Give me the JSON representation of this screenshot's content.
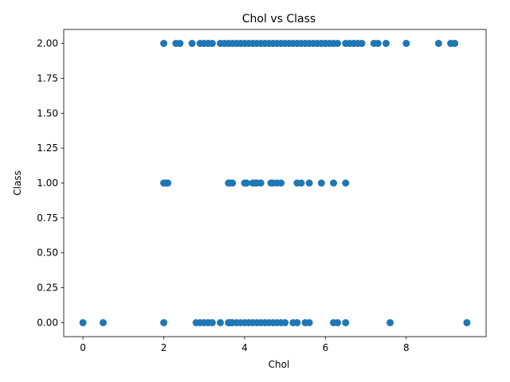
{
  "chart_data": {
    "type": "scatter",
    "title": "Chol vs Class",
    "xlabel": "Chol",
    "ylabel": "Class",
    "xlim": [
      -0.475,
      9.975
    ],
    "ylim": [
      -0.1,
      2.1
    ],
    "x_ticks": [
      0,
      2,
      4,
      6,
      8
    ],
    "x_tick_labels": [
      "0",
      "2",
      "4",
      "6",
      "8"
    ],
    "y_ticks": [
      0.0,
      0.25,
      0.5,
      0.75,
      1.0,
      1.25,
      1.5,
      1.75,
      2.0
    ],
    "y_tick_labels": [
      "0.00",
      "0.25",
      "0.50",
      "0.75",
      "1.00",
      "1.25",
      "1.50",
      "1.75",
      "2.00"
    ],
    "grid": false,
    "marker_color": "#1f77b4",
    "series": [
      {
        "x": [
          2.0,
          2.3,
          2.4,
          2.7,
          2.9,
          3.0,
          3.1,
          3.2,
          3.4,
          3.5,
          3.6,
          3.7,
          3.8,
          3.9,
          4.0,
          4.1,
          4.2,
          4.3,
          4.4,
          4.5,
          4.6,
          4.7,
          4.8,
          4.9,
          5.0,
          5.1,
          5.2,
          5.3,
          5.4,
          5.5,
          5.6,
          5.7,
          5.8,
          5.9,
          6.0,
          6.1,
          6.2,
          6.3,
          6.5,
          6.6,
          6.7,
          6.8,
          6.9,
          7.2,
          7.3,
          7.5,
          8.0,
          8.8,
          9.1,
          9.2,
          2.0,
          2.05,
          2.1,
          3.6,
          3.65,
          3.7,
          4.0,
          4.05,
          4.2,
          4.25,
          4.3,
          4.4,
          4.65,
          4.7,
          4.8,
          4.9,
          5.3,
          5.4,
          5.6,
          5.9,
          6.2,
          6.5,
          0.0,
          0.5,
          2.0,
          2.8,
          2.9,
          3.0,
          3.1,
          3.2,
          3.4,
          3.6,
          3.65,
          3.7,
          3.8,
          3.9,
          4.0,
          4.1,
          4.2,
          4.3,
          4.4,
          4.5,
          4.6,
          4.7,
          4.8,
          4.9,
          5.0,
          5.2,
          5.3,
          5.5,
          5.6,
          6.2,
          6.3,
          6.5,
          7.6,
          9.5
        ],
        "y": [
          2,
          2,
          2,
          2,
          2,
          2,
          2,
          2,
          2,
          2,
          2,
          2,
          2,
          2,
          2,
          2,
          2,
          2,
          2,
          2,
          2,
          2,
          2,
          2,
          2,
          2,
          2,
          2,
          2,
          2,
          2,
          2,
          2,
          2,
          2,
          2,
          2,
          2,
          2,
          2,
          2,
          2,
          2,
          2,
          2,
          2,
          2,
          2,
          2,
          2,
          1,
          1,
          1,
          1,
          1,
          1,
          1,
          1,
          1,
          1,
          1,
          1,
          1,
          1,
          1,
          1,
          1,
          1,
          1,
          1,
          1,
          1,
          0,
          0,
          0,
          0,
          0,
          0,
          0,
          0,
          0,
          0,
          0,
          0,
          0,
          0,
          0,
          0,
          0,
          0,
          0,
          0,
          0,
          0,
          0,
          0,
          0,
          0,
          0,
          0,
          0,
          0,
          0,
          0,
          0,
          0
        ]
      }
    ]
  }
}
